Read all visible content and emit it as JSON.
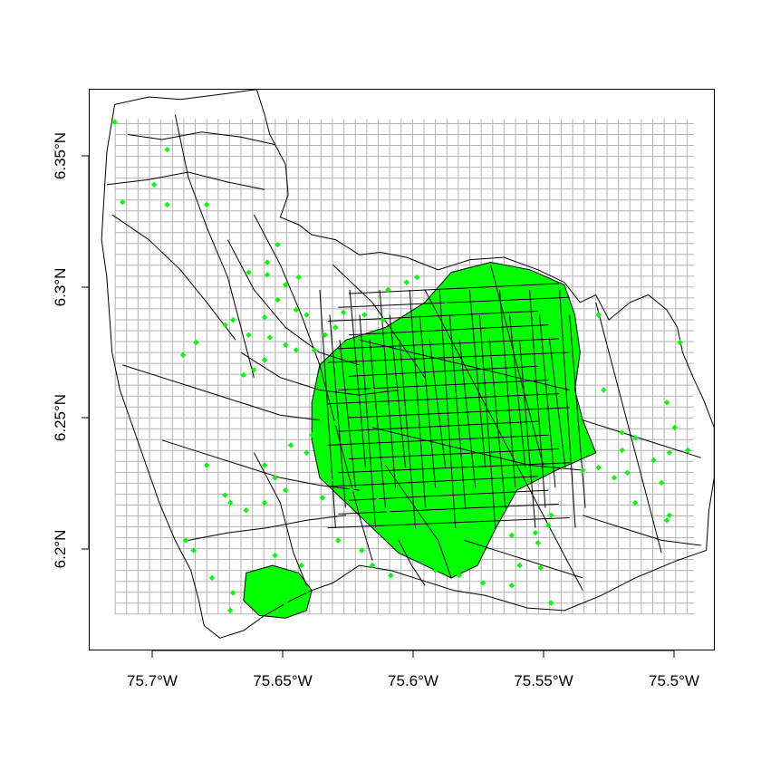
{
  "map": {
    "x_ticks": [
      {
        "value": -75.7,
        "label": "75.7°W"
      },
      {
        "value": -75.65,
        "label": "75.65°W"
      },
      {
        "value": -75.6,
        "label": "75.6°W"
      },
      {
        "value": -75.55,
        "label": "75.55°W"
      },
      {
        "value": -75.5,
        "label": "75.5°W"
      }
    ],
    "y_ticks": [
      {
        "value": 6.2,
        "label": "6.2°N"
      },
      {
        "value": 6.25,
        "label": "6.25°N"
      },
      {
        "value": 6.3,
        "label": "6.3°N"
      },
      {
        "value": 6.35,
        "label": "6.35°N"
      }
    ],
    "xlim": [
      -75.7225,
      -75.4851
    ],
    "ylim": [
      6.1564,
      6.3799
    ],
    "grid": {
      "lon_min": -75.7128,
      "lon_max": -75.4927,
      "lat_min": 6.1706,
      "lat_max": 6.3682,
      "step": 0.00435
    },
    "colors": {
      "points": "#00ff00",
      "boundaries": "#000000",
      "grid": "#b3b3b3"
    },
    "outline": [
      [
        -75.713,
        6.374
      ],
      [
        -75.7,
        6.377
      ],
      [
        -75.688,
        6.376
      ],
      [
        -75.673,
        6.378
      ],
      [
        -75.659,
        6.38
      ],
      [
        -75.656,
        6.37
      ],
      [
        -75.654,
        6.362
      ],
      [
        -75.648,
        6.35
      ],
      [
        -75.647,
        6.338
      ],
      [
        -75.65,
        6.329
      ],
      [
        -75.643,
        6.326
      ],
      [
        -75.638,
        6.322
      ],
      [
        -75.629,
        6.32
      ],
      [
        -75.62,
        6.314
      ],
      [
        -75.612,
        6.315
      ],
      [
        -75.602,
        6.313
      ],
      [
        -75.59,
        6.308
      ],
      [
        -75.578,
        6.312
      ],
      [
        -75.565,
        6.313
      ],
      [
        -75.552,
        6.308
      ],
      [
        -75.542,
        6.303
      ],
      [
        -75.536,
        6.295
      ],
      [
        -75.53,
        6.298
      ],
      [
        -75.525,
        6.288
      ],
      [
        -75.517,
        6.295
      ],
      [
        -75.51,
        6.298
      ],
      [
        -75.503,
        6.292
      ],
      [
        -75.499,
        6.285
      ],
      [
        -75.497,
        6.275
      ],
      [
        -75.493,
        6.265
      ],
      [
        -75.489,
        6.256
      ],
      [
        -75.485,
        6.245
      ],
      [
        -75.485,
        6.225
      ],
      [
        -75.487,
        6.212
      ],
      [
        -75.488,
        6.196
      ],
      [
        -75.499,
        6.192
      ],
      [
        -75.515,
        6.185
      ],
      [
        -75.528,
        6.178
      ],
      [
        -75.542,
        6.172
      ],
      [
        -75.556,
        6.173
      ],
      [
        -75.572,
        6.178
      ],
      [
        -75.584,
        6.18
      ],
      [
        -75.596,
        6.184
      ],
      [
        -75.608,
        6.188
      ],
      [
        -75.62,
        6.19
      ],
      [
        -75.63,
        6.183
      ],
      [
        -75.638,
        6.18
      ],
      [
        -75.646,
        6.176
      ],
      [
        -75.656,
        6.17
      ],
      [
        -75.664,
        6.164
      ],
      [
        -75.673,
        6.161
      ],
      [
        -75.679,
        6.166
      ],
      [
        -75.681,
        6.176
      ],
      [
        -75.684,
        6.188
      ],
      [
        -75.69,
        6.2
      ],
      [
        -75.696,
        6.215
      ],
      [
        -75.701,
        6.23
      ],
      [
        -75.706,
        6.245
      ],
      [
        -75.711,
        6.26
      ],
      [
        -75.714,
        6.275
      ],
      [
        -75.715,
        6.29
      ],
      [
        -75.716,
        6.305
      ],
      [
        -75.718,
        6.32
      ],
      [
        -75.717,
        6.338
      ],
      [
        -75.716,
        6.355
      ],
      [
        -75.713,
        6.374
      ]
    ],
    "inner_lines": [
      [
        [
          -75.716,
          6.342
        ],
        [
          -75.7,
          6.344
        ],
        [
          -75.685,
          6.347
        ],
        [
          -75.67,
          6.343
        ],
        [
          -75.656,
          6.34
        ]
      ],
      [
        [
          -75.708,
          6.362
        ],
        [
          -75.695,
          6.36
        ],
        [
          -75.68,
          6.363
        ],
        [
          -75.665,
          6.361
        ],
        [
          -75.652,
          6.358
        ]
      ],
      [
        [
          -75.714,
          6.33
        ],
        [
          -75.7,
          6.32
        ],
        [
          -75.688,
          6.308
        ],
        [
          -75.678,
          6.295
        ],
        [
          -75.667,
          6.28
        ]
      ],
      [
        [
          -75.69,
          6.37
        ],
        [
          -75.685,
          6.345
        ],
        [
          -75.678,
          6.325
        ],
        [
          -75.67,
          6.305
        ],
        [
          -75.665,
          6.285
        ],
        [
          -75.66,
          6.265
        ]
      ],
      [
        [
          -75.71,
          6.27
        ],
        [
          -75.695,
          6.265
        ],
        [
          -75.68,
          6.26
        ],
        [
          -75.665,
          6.255
        ],
        [
          -75.65,
          6.25
        ],
        [
          -75.635,
          6.248
        ]
      ],
      [
        [
          -75.695,
          6.24
        ],
        [
          -75.68,
          6.235
        ],
        [
          -75.665,
          6.23
        ],
        [
          -75.65,
          6.225
        ],
        [
          -75.635,
          6.222
        ],
        [
          -75.62,
          6.22
        ]
      ],
      [
        [
          -75.685,
          6.2
        ],
        [
          -75.67,
          6.203
        ],
        [
          -75.655,
          6.205
        ],
        [
          -75.64,
          6.208
        ],
        [
          -75.625,
          6.21
        ]
      ],
      [
        [
          -75.66,
          6.33
        ],
        [
          -75.65,
          6.31
        ],
        [
          -75.642,
          6.29
        ],
        [
          -75.635,
          6.27
        ],
        [
          -75.63,
          6.25
        ],
        [
          -75.625,
          6.23
        ],
        [
          -75.62,
          6.21
        ],
        [
          -75.615,
          6.192
        ]
      ],
      [
        [
          -75.67,
          6.32
        ],
        [
          -75.66,
          6.3
        ],
        [
          -75.648,
          6.285
        ],
        [
          -75.635,
          6.275
        ],
        [
          -75.62,
          6.27
        ]
      ],
      [
        [
          -75.665,
          6.275
        ],
        [
          -75.65,
          6.265
        ],
        [
          -75.635,
          6.26
        ],
        [
          -75.62,
          6.258
        ],
        [
          -75.605,
          6.26
        ]
      ],
      [
        [
          -75.66,
          6.235
        ],
        [
          -75.65,
          6.215
        ],
        [
          -75.645,
          6.195
        ],
        [
          -75.64,
          6.182
        ]
      ],
      [
        [
          -75.63,
          6.31
        ],
        [
          -75.615,
          6.295
        ],
        [
          -75.605,
          6.28
        ],
        [
          -75.595,
          6.265
        ]
      ],
      [
        [
          -75.61,
          6.23
        ],
        [
          -75.6,
          6.215
        ],
        [
          -75.59,
          6.2
        ],
        [
          -75.585,
          6.185
        ]
      ],
      [
        [
          -75.595,
          6.3
        ],
        [
          -75.585,
          6.28
        ],
        [
          -75.575,
          6.26
        ],
        [
          -75.565,
          6.24
        ],
        [
          -75.555,
          6.22
        ],
        [
          -75.545,
          6.2
        ],
        [
          -75.535,
          6.18
        ]
      ],
      [
        [
          -75.57,
          6.31
        ],
        [
          -75.565,
          6.29
        ],
        [
          -75.56,
          6.27
        ],
        [
          -75.555,
          6.25
        ],
        [
          -75.55,
          6.23
        ]
      ],
      [
        [
          -75.62,
          6.28
        ],
        [
          -75.6,
          6.275
        ],
        [
          -75.58,
          6.27
        ],
        [
          -75.56,
          6.265
        ],
        [
          -75.54,
          6.26
        ]
      ],
      [
        [
          -75.615,
          6.245
        ],
        [
          -75.595,
          6.24
        ],
        [
          -75.575,
          6.235
        ],
        [
          -75.555,
          6.23
        ],
        [
          -75.535,
          6.228
        ]
      ],
      [
        [
          -75.53,
          6.295
        ],
        [
          -75.525,
          6.275
        ],
        [
          -75.52,
          6.255
        ],
        [
          -75.515,
          6.235
        ],
        [
          -75.51,
          6.215
        ],
        [
          -75.505,
          6.195
        ]
      ],
      [
        [
          -75.535,
          6.248
        ],
        [
          -75.52,
          6.243
        ],
        [
          -75.505,
          6.238
        ],
        [
          -75.49,
          6.233
        ]
      ],
      [
        [
          -75.535,
          6.21
        ],
        [
          -75.52,
          6.205
        ],
        [
          -75.505,
          6.2
        ],
        [
          -75.49,
          6.198
        ]
      ],
      [
        [
          -75.58,
          6.2
        ],
        [
          -75.565,
          6.195
        ],
        [
          -75.55,
          6.19
        ],
        [
          -75.535,
          6.185
        ]
      ],
      [
        [
          -75.605,
          6.2
        ],
        [
          -75.6,
          6.19
        ],
        [
          -75.595,
          6.182
        ]
      ]
    ],
    "urban_areas": [
      [
        [
          -75.625,
          6.28
        ],
        [
          -75.61,
          6.285
        ],
        [
          -75.595,
          6.295
        ],
        [
          -75.585,
          6.307
        ],
        [
          -75.57,
          6.311
        ],
        [
          -75.555,
          6.308
        ],
        [
          -75.542,
          6.302
        ],
        [
          -75.538,
          6.29
        ],
        [
          -75.536,
          6.275
        ],
        [
          -75.538,
          6.26
        ],
        [
          -75.535,
          6.248
        ],
        [
          -75.53,
          6.235
        ],
        [
          -75.545,
          6.228
        ],
        [
          -75.56,
          6.22
        ],
        [
          -75.568,
          6.205
        ],
        [
          -75.575,
          6.19
        ],
        [
          -75.585,
          6.185
        ],
        [
          -75.595,
          6.19
        ],
        [
          -75.605,
          6.195
        ],
        [
          -75.615,
          6.205
        ],
        [
          -75.625,
          6.215
        ],
        [
          -75.635,
          6.225
        ],
        [
          -75.638,
          6.24
        ],
        [
          -75.638,
          6.255
        ],
        [
          -75.635,
          6.27
        ],
        [
          -75.625,
          6.28
        ]
      ],
      [
        [
          -75.663,
          6.187
        ],
        [
          -75.653,
          6.19
        ],
        [
          -75.643,
          6.187
        ],
        [
          -75.638,
          6.18
        ],
        [
          -75.64,
          6.172
        ],
        [
          -75.648,
          6.169
        ],
        [
          -75.658,
          6.17
        ],
        [
          -75.664,
          6.176
        ],
        [
          -75.663,
          6.187
        ]
      ]
    ],
    "points": [
      [
        -75.713,
        6.367
      ],
      [
        -75.693,
        6.356
      ],
      [
        -75.698,
        6.342
      ],
      [
        -75.693,
        6.334
      ],
      [
        -75.71,
        6.335
      ],
      [
        -75.678,
        6.334
      ],
      [
        -75.655,
        6.311
      ],
      [
        -75.651,
        6.318
      ],
      [
        -75.655,
        6.306
      ],
      [
        -75.662,
        6.307
      ],
      [
        -75.648,
        6.302
      ],
      [
        -75.643,
        6.305
      ],
      [
        -75.651,
        6.296
      ],
      [
        -75.644,
        6.292
      ],
      [
        -75.64,
        6.29
      ],
      [
        -75.656,
        6.289
      ],
      [
        -75.668,
        6.288
      ],
      [
        -75.671,
        6.286
      ],
      [
        -75.662,
        6.282
      ],
      [
        -75.654,
        6.281
      ],
      [
        -75.648,
        6.278
      ],
      [
        -75.644,
        6.276
      ],
      [
        -75.637,
        6.276
      ],
      [
        -75.656,
        6.272
      ],
      [
        -75.66,
        6.268
      ],
      [
        -75.664,
        6.266
      ],
      [
        -75.682,
        6.279
      ],
      [
        -75.687,
        6.274
      ],
      [
        -75.633,
        6.282
      ],
      [
        -75.629,
        6.285
      ],
      [
        -75.626,
        6.291
      ],
      [
        -75.618,
        6.29
      ],
      [
        -75.611,
        6.288
      ],
      [
        -75.603,
        6.287
      ],
      [
        -75.609,
        6.3
      ],
      [
        -75.602,
        6.303
      ],
      [
        -75.598,
        6.305
      ],
      [
        -75.587,
        6.294
      ],
      [
        -75.615,
        6.26
      ],
      [
        -75.623,
        6.253
      ],
      [
        -75.629,
        6.247
      ],
      [
        -75.638,
        6.242
      ],
      [
        -75.64,
        6.235
      ],
      [
        -75.646,
        6.238
      ],
      [
        -75.656,
        6.23
      ],
      [
        -75.652,
        6.225
      ],
      [
        -75.648,
        6.22
      ],
      [
        -75.656,
        6.215
      ],
      [
        -75.663,
        6.212
      ],
      [
        -75.669,
        6.215
      ],
      [
        -75.671,
        6.218
      ],
      [
        -75.678,
        6.23
      ],
      [
        -75.686,
        6.2
      ],
      [
        -75.683,
        6.196
      ],
      [
        -75.676,
        6.185
      ],
      [
        -75.668,
        6.179
      ],
      [
        -75.669,
        6.172
      ],
      [
        -75.661,
        6.176
      ],
      [
        -75.655,
        6.176
      ],
      [
        -75.648,
        6.175
      ],
      [
        -75.64,
        6.18
      ],
      [
        -75.642,
        6.19
      ],
      [
        -75.652,
        6.194
      ],
      [
        -75.628,
        6.2
      ],
      [
        -75.619,
        6.196
      ],
      [
        -75.615,
        6.19
      ],
      [
        -75.608,
        6.186
      ],
      [
        -75.634,
        6.217
      ],
      [
        -75.631,
        6.224
      ],
      [
        -75.623,
        6.22
      ],
      [
        -75.613,
        6.216
      ],
      [
        -75.609,
        6.212
      ],
      [
        -75.604,
        6.208
      ],
      [
        -75.591,
        6.188
      ],
      [
        -75.582,
        6.186
      ],
      [
        -75.573,
        6.183
      ],
      [
        -75.562,
        6.182
      ],
      [
        -75.551,
        6.189
      ],
      [
        -75.547,
        6.175
      ],
      [
        -75.559,
        6.19
      ],
      [
        -75.579,
        6.196
      ],
      [
        -75.562,
        6.202
      ],
      [
        -75.553,
        6.203
      ],
      [
        -75.548,
        6.206
      ],
      [
        -75.547,
        6.21
      ],
      [
        -75.552,
        6.199
      ],
      [
        -75.535,
        6.228
      ],
      [
        -75.529,
        6.229
      ],
      [
        -75.52,
        6.236
      ],
      [
        -75.515,
        6.241
      ],
      [
        -75.52,
        6.243
      ],
      [
        -75.518,
        6.227
      ],
      [
        -75.523,
        6.225
      ],
      [
        -75.508,
        6.232
      ],
      [
        -75.515,
        6.215
      ],
      [
        -75.502,
        6.21
      ],
      [
        -75.502,
        6.235
      ],
      [
        -75.503,
        6.255
      ],
      [
        -75.498,
        6.279
      ],
      [
        -75.527,
        6.26
      ],
      [
        -75.529,
        6.29
      ],
      [
        -75.503,
        6.208
      ],
      [
        -75.5,
        6.245
      ],
      [
        -75.495,
        6.236
      ],
      [
        -75.505,
        6.223
      ]
    ]
  }
}
